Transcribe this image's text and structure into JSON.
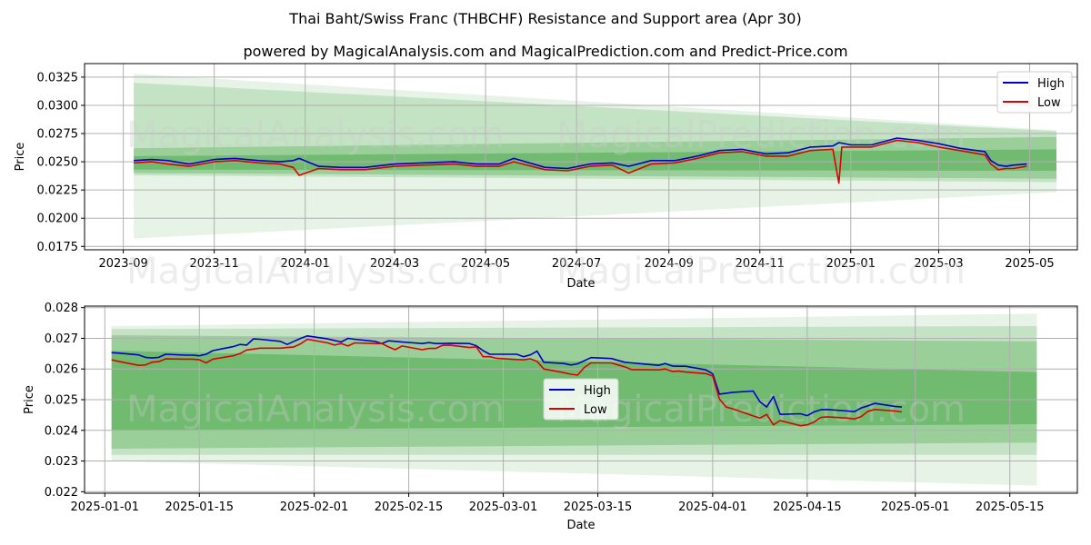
{
  "title": "Thai Baht/Swiss Franc (THBCHF) Resistance and Support area (Apr 30)",
  "subtitle": "powered by MagicalAnalysis.com and MagicalPrediction.com and Predict-Price.com",
  "watermarks": [
    "MagicalAnalysis.com",
    "MagicalPrediction.com"
  ],
  "colors": {
    "high": "#0000cc",
    "low": "#dd0000",
    "band": "#2e9b2e"
  },
  "chart_data": [
    {
      "type": "line",
      "xlabel": "Date",
      "ylabel": "Price",
      "xticks": [
        "2023-09",
        "2023-11",
        "2024-01",
        "2024-03",
        "2024-05",
        "2024-07",
        "2024-09",
        "2024-11",
        "2025-01",
        "2025-03",
        "2025-05"
      ],
      "yticks": [
        "0.0175",
        "0.0200",
        "0.0225",
        "0.0250",
        "0.0275",
        "0.0300",
        "0.0325"
      ],
      "xlim": [
        "2023-08-06",
        "2025-06-02"
      ],
      "ylim": [
        0.0172,
        0.0337
      ],
      "legend": {
        "position": "top-right",
        "entries": [
          "High",
          "Low"
        ]
      },
      "grid": true,
      "bands": [
        {
          "x": [
            "2023-09-08",
            "2025-05-19"
          ],
          "upper": [
            0.0328,
            0.0278
          ],
          "lower": [
            0.0182,
            0.0223
          ]
        },
        {
          "x": [
            "2023-09-08",
            "2025-05-19"
          ],
          "upper": [
            0.032,
            0.0277
          ],
          "lower": [
            0.0238,
            0.0232
          ]
        },
        {
          "x": [
            "2023-09-08",
            "2025-05-19"
          ],
          "upper": [
            0.0262,
            0.0272
          ],
          "lower": [
            0.024,
            0.0235
          ]
        },
        {
          "x": [
            "2023-09-08",
            "2025-05-19"
          ],
          "upper": [
            0.0255,
            0.0261
          ],
          "lower": [
            0.0243,
            0.0242
          ]
        }
      ],
      "series": [
        {
          "name": "High",
          "x": [
            "2023-09-08",
            "2023-09-20",
            "2023-10-01",
            "2023-10-15",
            "2023-11-01",
            "2023-11-15",
            "2023-12-01",
            "2023-12-15",
            "2023-12-24",
            "2023-12-28",
            "2024-01-10",
            "2024-01-25",
            "2024-02-10",
            "2024-03-01",
            "2024-03-20",
            "2024-04-10",
            "2024-04-25",
            "2024-05-10",
            "2024-05-20",
            "2024-06-10",
            "2024-06-25",
            "2024-07-10",
            "2024-07-25",
            "2024-08-05",
            "2024-08-20",
            "2024-09-05",
            "2024-09-20",
            "2024-10-05",
            "2024-10-20",
            "2024-11-05",
            "2024-11-20",
            "2024-12-05",
            "2024-12-20",
            "2024-12-24",
            "2025-01-01",
            "2025-01-15",
            "2025-02-01",
            "2025-02-15",
            "2025-03-01",
            "2025-03-15",
            "2025-04-01",
            "2025-04-05",
            "2025-04-10",
            "2025-04-15",
            "2025-04-20",
            "2025-04-29"
          ],
          "values": [
            0.0251,
            0.0252,
            0.0251,
            0.0248,
            0.0252,
            0.0253,
            0.0251,
            0.025,
            0.0251,
            0.0253,
            0.0246,
            0.0245,
            0.0245,
            0.0248,
            0.0249,
            0.025,
            0.0248,
            0.0248,
            0.0253,
            0.0245,
            0.0244,
            0.0248,
            0.0249,
            0.0246,
            0.0251,
            0.0251,
            0.0255,
            0.026,
            0.0261,
            0.0257,
            0.0258,
            0.0263,
            0.0264,
            0.0267,
            0.0265,
            0.0265,
            0.0271,
            0.0269,
            0.0266,
            0.0262,
            0.0259,
            0.0251,
            0.0247,
            0.0246,
            0.0247,
            0.0248
          ]
        },
        {
          "name": "Low",
          "x": [
            "2023-09-08",
            "2023-09-20",
            "2023-10-01",
            "2023-10-15",
            "2023-11-01",
            "2023-11-15",
            "2023-12-01",
            "2023-12-15",
            "2023-12-24",
            "2023-12-28",
            "2024-01-10",
            "2024-01-25",
            "2024-02-10",
            "2024-03-01",
            "2024-03-20",
            "2024-04-10",
            "2024-04-25",
            "2024-05-10",
            "2024-05-20",
            "2024-06-10",
            "2024-06-25",
            "2024-07-10",
            "2024-07-25",
            "2024-08-05",
            "2024-08-20",
            "2024-09-05",
            "2024-09-20",
            "2024-10-05",
            "2024-10-20",
            "2024-11-05",
            "2024-11-20",
            "2024-12-05",
            "2024-12-20",
            "2024-12-24",
            "2024-12-26",
            "2025-01-01",
            "2025-01-15",
            "2025-02-01",
            "2025-02-15",
            "2025-03-01",
            "2025-03-15",
            "2025-04-01",
            "2025-04-05",
            "2025-04-10",
            "2025-04-15",
            "2025-04-20",
            "2025-04-29"
          ],
          "values": [
            0.0249,
            0.025,
            0.0248,
            0.0246,
            0.025,
            0.0251,
            0.0249,
            0.0248,
            0.0245,
            0.0238,
            0.0244,
            0.0243,
            0.0243,
            0.0246,
            0.0247,
            0.0248,
            0.0246,
            0.0246,
            0.025,
            0.0243,
            0.0242,
            0.0246,
            0.0247,
            0.024,
            0.0248,
            0.0249,
            0.0253,
            0.0258,
            0.0259,
            0.0255,
            0.0255,
            0.026,
            0.0261,
            0.0231,
            0.0263,
            0.0263,
            0.0263,
            0.0269,
            0.0267,
            0.0263,
            0.026,
            0.0256,
            0.0248,
            0.0243,
            0.0244,
            0.0244,
            0.0246
          ]
        }
      ]
    },
    {
      "type": "line",
      "xlabel": "Date",
      "ylabel": "Price",
      "xticks": [
        "2025-01-01",
        "2025-01-15",
        "2025-02-01",
        "2025-02-15",
        "2025-03-01",
        "2025-03-15",
        "2025-04-01",
        "2025-04-15",
        "2025-05-01",
        "2025-05-15"
      ],
      "yticks": [
        "0.022",
        "0.023",
        "0.024",
        "0.025",
        "0.026",
        "0.027",
        "0.028"
      ],
      "xlim": [
        "2024-12-29",
        "2025-05-25"
      ],
      "ylim": [
        0.02195,
        0.02805
      ],
      "legend": {
        "position": "center",
        "entries": [
          "High",
          "Low"
        ]
      },
      "grid": true,
      "bands": [
        {
          "x": [
            "2025-01-02",
            "2025-05-19"
          ],
          "upper": [
            0.0274,
            0.0278
          ],
          "lower": [
            0.023,
            0.0222
          ]
        },
        {
          "x": [
            "2025-01-02",
            "2025-05-19"
          ],
          "upper": [
            0.0273,
            0.0274
          ],
          "lower": [
            0.0232,
            0.0232
          ]
        },
        {
          "x": [
            "2025-01-02",
            "2025-05-19"
          ],
          "upper": [
            0.0271,
            0.0269
          ],
          "lower": [
            0.0234,
            0.0236
          ]
        },
        {
          "x": [
            "2025-01-02",
            "2025-05-19"
          ],
          "upper": [
            0.0266,
            0.0259
          ],
          "lower": [
            0.024,
            0.0242
          ]
        }
      ],
      "series": [
        {
          "name": "High",
          "x": [
            "2025-01-02",
            "2025-01-03",
            "2025-01-06",
            "2025-01-07",
            "2025-01-08",
            "2025-01-09",
            "2025-01-10",
            "2025-01-13",
            "2025-01-14",
            "2025-01-15",
            "2025-01-16",
            "2025-01-17",
            "2025-01-20",
            "2025-01-21",
            "2025-01-22",
            "2025-01-23",
            "2025-01-24",
            "2025-01-27",
            "2025-01-28",
            "2025-01-29",
            "2025-01-30",
            "2025-01-31",
            "2025-02-03",
            "2025-02-04",
            "2025-02-05",
            "2025-02-06",
            "2025-02-07",
            "2025-02-10",
            "2025-02-11",
            "2025-02-12",
            "2025-02-13",
            "2025-02-14",
            "2025-02-17",
            "2025-02-18",
            "2025-02-19",
            "2025-02-20",
            "2025-02-21",
            "2025-02-24",
            "2025-02-25",
            "2025-02-26",
            "2025-02-27",
            "2025-02-28",
            "2025-03-03",
            "2025-03-04",
            "2025-03-05",
            "2025-03-06",
            "2025-03-07",
            "2025-03-10",
            "2025-03-11",
            "2025-03-12",
            "2025-03-13",
            "2025-03-14",
            "2025-03-17",
            "2025-03-18",
            "2025-03-19",
            "2025-03-20",
            "2025-03-21",
            "2025-03-24",
            "2025-03-25",
            "2025-03-26",
            "2025-03-27",
            "2025-03-28",
            "2025-03-31",
            "2025-04-01",
            "2025-04-02",
            "2025-04-03",
            "2025-04-04",
            "2025-04-07",
            "2025-04-08",
            "2025-04-09",
            "2025-04-10",
            "2025-04-11",
            "2025-04-14",
            "2025-04-15",
            "2025-04-16",
            "2025-04-17",
            "2025-04-18",
            "2025-04-21",
            "2025-04-22",
            "2025-04-23",
            "2025-04-24",
            "2025-04-25",
            "2025-04-28",
            "2025-04-29"
          ],
          "values": [
            0.02653,
            0.02652,
            0.02646,
            0.02638,
            0.02636,
            0.02638,
            0.02648,
            0.02645,
            0.02645,
            0.02643,
            0.02648,
            0.0266,
            0.02673,
            0.0268,
            0.02678,
            0.02698,
            0.02697,
            0.0269,
            0.0268,
            0.0269,
            0.027,
            0.02708,
            0.02698,
            0.02693,
            0.02688,
            0.027,
            0.02697,
            0.0269,
            0.02683,
            0.02692,
            0.0269,
            0.02688,
            0.02683,
            0.02686,
            0.02683,
            0.02683,
            0.02684,
            0.02683,
            0.02676,
            0.0266,
            0.02648,
            0.02648,
            0.02648,
            0.0264,
            0.02646,
            0.02658,
            0.02622,
            0.02618,
            0.02613,
            0.02617,
            0.02627,
            0.02637,
            0.02634,
            0.02628,
            0.02622,
            0.0262,
            0.02618,
            0.02612,
            0.02618,
            0.0261,
            0.02609,
            0.02609,
            0.02597,
            0.02584,
            0.02518,
            0.02521,
            0.02524,
            0.02528,
            0.02493,
            0.02476,
            0.0251,
            0.02452,
            0.02454,
            0.02448,
            0.0246,
            0.02467,
            0.02468,
            0.02463,
            0.02461,
            0.02473,
            0.0248,
            0.02488,
            0.02478,
            0.02476
          ]
        },
        {
          "name": "Low",
          "x": [
            "2025-01-02",
            "2025-01-03",
            "2025-01-06",
            "2025-01-07",
            "2025-01-08",
            "2025-01-09",
            "2025-01-10",
            "2025-01-13",
            "2025-01-14",
            "2025-01-15",
            "2025-01-16",
            "2025-01-17",
            "2025-01-20",
            "2025-01-21",
            "2025-01-22",
            "2025-01-23",
            "2025-01-24",
            "2025-01-27",
            "2025-01-28",
            "2025-01-29",
            "2025-01-30",
            "2025-01-31",
            "2025-02-03",
            "2025-02-04",
            "2025-02-05",
            "2025-02-06",
            "2025-02-07",
            "2025-02-10",
            "2025-02-11",
            "2025-02-12",
            "2025-02-13",
            "2025-02-14",
            "2025-02-17",
            "2025-02-18",
            "2025-02-19",
            "2025-02-20",
            "2025-02-21",
            "2025-02-24",
            "2025-02-25",
            "2025-02-26",
            "2025-02-27",
            "2025-02-28",
            "2025-03-03",
            "2025-03-04",
            "2025-03-05",
            "2025-03-06",
            "2025-03-07",
            "2025-03-10",
            "2025-03-11",
            "2025-03-12",
            "2025-03-13",
            "2025-03-14",
            "2025-03-17",
            "2025-03-18",
            "2025-03-19",
            "2025-03-20",
            "2025-03-21",
            "2025-03-24",
            "2025-03-25",
            "2025-03-26",
            "2025-03-27",
            "2025-03-28",
            "2025-03-31",
            "2025-04-01",
            "2025-04-02",
            "2025-04-03",
            "2025-04-04",
            "2025-04-07",
            "2025-04-08",
            "2025-04-09",
            "2025-04-10",
            "2025-04-11",
            "2025-04-14",
            "2025-04-15",
            "2025-04-16",
            "2025-04-17",
            "2025-04-18",
            "2025-04-21",
            "2025-04-22",
            "2025-04-23",
            "2025-04-24",
            "2025-04-25",
            "2025-04-28",
            "2025-04-29"
          ],
          "values": [
            0.0263,
            0.02625,
            0.02612,
            0.02613,
            0.02622,
            0.02624,
            0.02633,
            0.02632,
            0.02632,
            0.0263,
            0.0262,
            0.02632,
            0.02643,
            0.0265,
            0.02662,
            0.02665,
            0.02668,
            0.02668,
            0.0267,
            0.02672,
            0.02682,
            0.02697,
            0.02685,
            0.02678,
            0.02683,
            0.02675,
            0.02685,
            0.02683,
            0.02683,
            0.02672,
            0.02663,
            0.02675,
            0.02663,
            0.02667,
            0.02667,
            0.02677,
            0.02678,
            0.0267,
            0.02672,
            0.0264,
            0.0264,
            0.02635,
            0.02631,
            0.0263,
            0.02633,
            0.02625,
            0.026,
            0.02588,
            0.02583,
            0.0258,
            0.02605,
            0.0262,
            0.0262,
            0.02613,
            0.02607,
            0.02598,
            0.02598,
            0.02597,
            0.026,
            0.02592,
            0.02593,
            0.0259,
            0.02585,
            0.02577,
            0.02502,
            0.02476,
            0.0247,
            0.02447,
            0.0244,
            0.02452,
            0.02418,
            0.02432,
            0.02415,
            0.02418,
            0.02427,
            0.02442,
            0.02444,
            0.0244,
            0.02437,
            0.02445,
            0.02462,
            0.02468,
            0.02463,
            0.0246
          ]
        }
      ]
    }
  ]
}
